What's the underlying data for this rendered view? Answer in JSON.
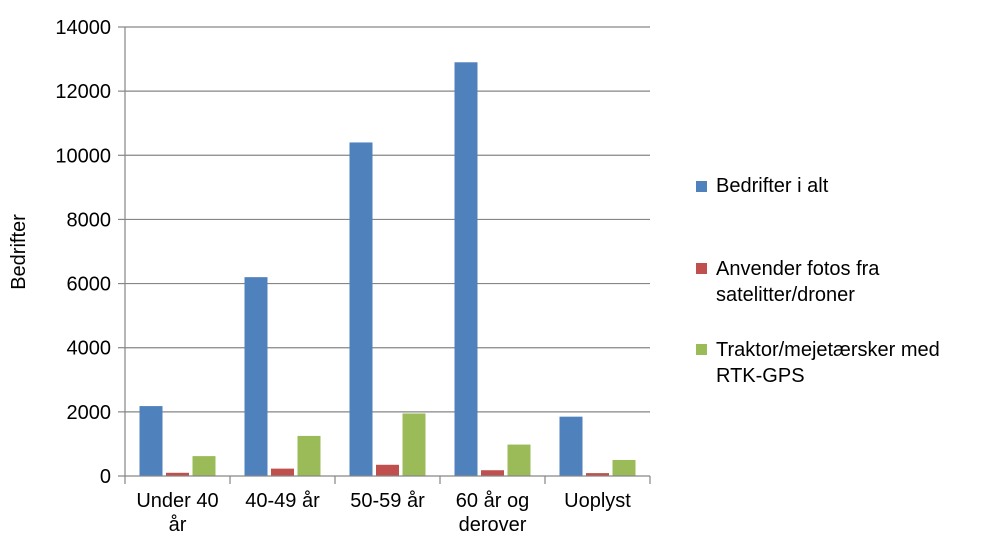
{
  "chart_data": {
    "type": "bar",
    "title": "",
    "xlabel": "",
    "ylabel": "Bedrifter",
    "ylim": [
      0,
      14000
    ],
    "yticks": [
      0,
      2000,
      4000,
      6000,
      8000,
      10000,
      12000,
      14000
    ],
    "grid": true,
    "legend_position": "right",
    "categories": [
      [
        "Under 40",
        "år"
      ],
      [
        "40-49 år"
      ],
      [
        "50-59 år"
      ],
      [
        "60 år og",
        "derover"
      ],
      [
        "Uoplyst"
      ]
    ],
    "series": [
      {
        "name": [
          "Bedrifter i alt"
        ],
        "color": "#4F81BD",
        "values": [
          2180,
          6200,
          10400,
          12900,
          1850
        ]
      },
      {
        "name": [
          "Anvender fotos fra",
          "satelitter/droner"
        ],
        "color": "#C0504D",
        "values": [
          100,
          230,
          350,
          180,
          90
        ]
      },
      {
        "name": [
          "Traktor/mejetærsker med",
          "RTK-GPS"
        ],
        "color": "#9BBB59",
        "values": [
          620,
          1250,
          1950,
          980,
          500
        ]
      }
    ]
  }
}
